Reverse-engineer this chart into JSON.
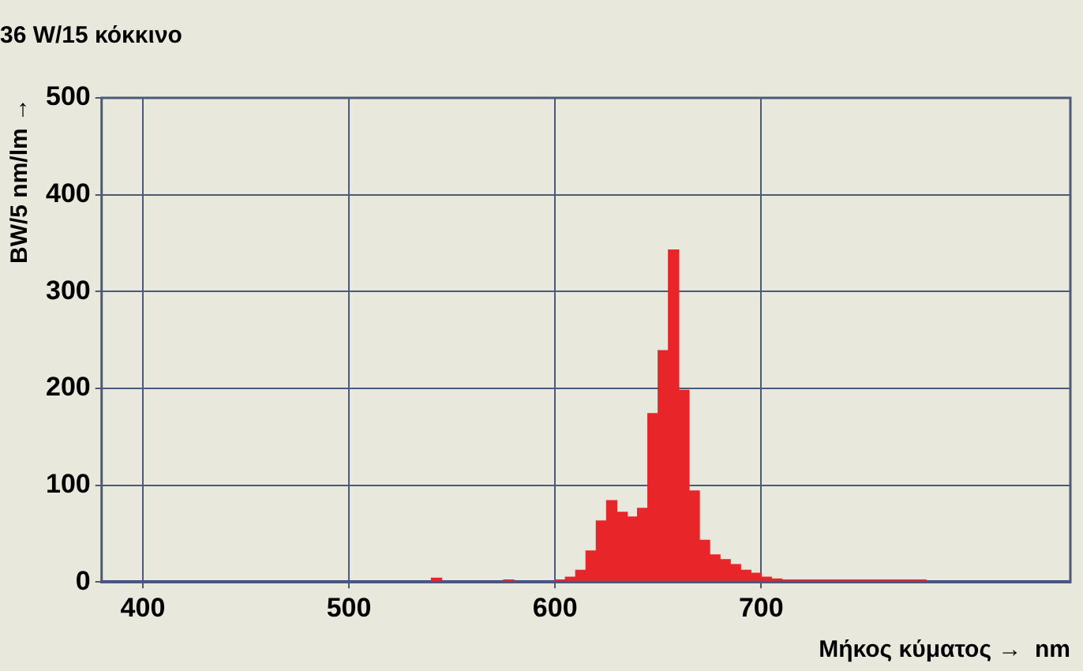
{
  "chart_data": {
    "type": "histogram",
    "title": "36 W/15 κόκκινο",
    "xlabel": "Μήκος κύματος →  nm",
    "ylabel": "BW/5 nm/lm →",
    "bins": [
      380,
      385,
      390,
      395,
      400,
      405,
      410,
      415,
      420,
      425,
      430,
      435,
      440,
      445,
      450,
      455,
      460,
      465,
      470,
      475,
      480,
      485,
      490,
      495,
      500,
      505,
      510,
      515,
      520,
      525,
      530,
      535,
      540,
      545,
      550,
      555,
      560,
      565,
      570,
      575,
      580,
      585,
      590,
      595,
      600,
      605,
      610,
      615,
      620,
      625,
      630,
      635,
      640,
      645,
      650,
      655,
      660,
      665,
      670,
      675,
      680,
      685,
      690,
      695,
      700,
      705,
      710,
      715,
      720,
      725,
      730,
      735,
      740,
      745,
      750,
      755,
      760,
      765,
      770,
      775,
      780,
      785,
      790,
      795,
      800,
      805,
      810,
      815,
      820,
      825,
      830,
      835,
      840,
      845,
      850
    ],
    "values": [
      0,
      0,
      0,
      0,
      0,
      0,
      0,
      0,
      0,
      0,
      0,
      0,
      0,
      0,
      0,
      0,
      0,
      0,
      0,
      0,
      0,
      0,
      0,
      0,
      0,
      0,
      0,
      0,
      0,
      0,
      0,
      0,
      4,
      0,
      0,
      0,
      0,
      0,
      0,
      2,
      0,
      0,
      0,
      0,
      2,
      5,
      12,
      32,
      63,
      84,
      72,
      67,
      76,
      174,
      239,
      343,
      198,
      94,
      43,
      28,
      23,
      18,
      12,
      9,
      5,
      3,
      2,
      2,
      2,
      2,
      2,
      2,
      2,
      2,
      2,
      2,
      2,
      2,
      2,
      2,
      0,
      0,
      0,
      0,
      0,
      0,
      0,
      0,
      0,
      0,
      0,
      0,
      0,
      0
    ],
    "color": "#e8262a",
    "xlim": [
      380,
      850
    ],
    "xticks": [
      400,
      500,
      600,
      700
    ],
    "ylim": [
      0,
      500
    ],
    "yticks": [
      0,
      100,
      200,
      300,
      400,
      500
    ],
    "grid": true,
    "legend": false
  }
}
